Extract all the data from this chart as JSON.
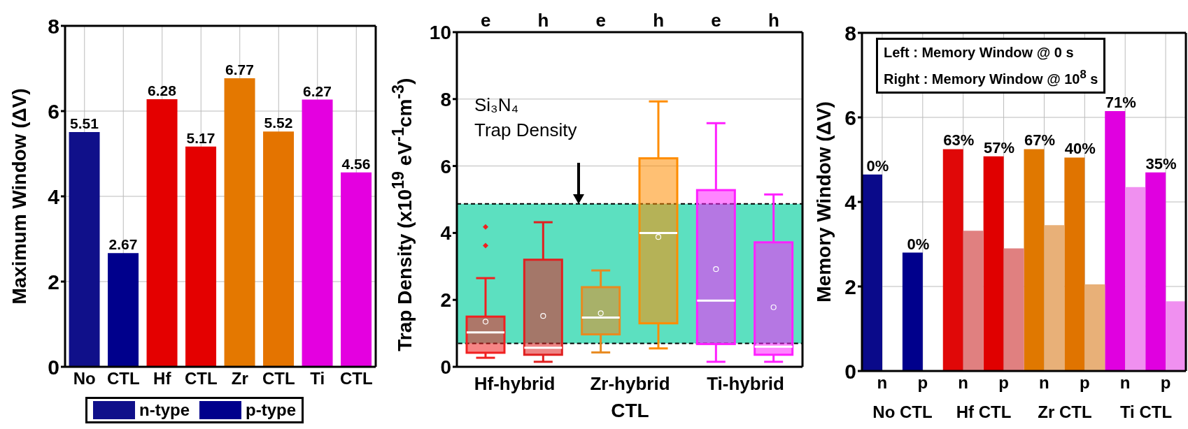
{
  "chart_data": [
    {
      "type": "bar",
      "ylabel": "Maximum Window (ΔV)",
      "categories": [
        "No",
        "CTL",
        "Hf",
        "CTL",
        "Zr",
        "CTL",
        "Ti",
        "CTL"
      ],
      "series": [
        {
          "name": "n-type",
          "color": "#10108a",
          "colors": [
            "#10108a",
            null,
            "#e40000",
            null,
            "#e47800",
            null,
            "#e400e0",
            null
          ],
          "values": [
            5.51,
            null,
            6.28,
            null,
            6.77,
            null,
            6.27,
            null
          ]
        },
        {
          "name": "p-type",
          "color": "#00008c",
          "colors": [
            null,
            "#00008c",
            null,
            "#e40000",
            null,
            "#e47400",
            null,
            "#e400e0"
          ],
          "values": [
            null,
            2.67,
            null,
            5.17,
            null,
            5.52,
            null,
            4.56
          ]
        }
      ],
      "stacked": true,
      "data_labels": true,
      "ylim": [
        0,
        8
      ],
      "yticks": [
        0,
        2,
        4,
        6,
        8
      ],
      "grid": true,
      "legend": "bottom"
    },
    {
      "type": "box",
      "ylabel": "Trap Density (x10$^{19}$ eV$^{-1}$cm$^{-3}$)",
      "xlabel": "CTL",
      "categories": [
        "e",
        "h",
        "e",
        "h",
        "e",
        "h"
      ],
      "colors": [
        "#f02020",
        "#e02020",
        "#e88a20",
        "#ff8c00",
        "#ff20ff",
        "#ff20ff"
      ],
      "boxes": [
        {
          "low": 0.27,
          "q1": 0.42,
          "median": 1.03,
          "q3": 1.5,
          "high": 2.65,
          "mean": 1.35,
          "outliers": [
            3.62,
            4.18
          ]
        },
        {
          "low": 0.15,
          "q1": 0.36,
          "median": 0.57,
          "q3": 3.2,
          "high": 4.32,
          "mean": 1.52
        },
        {
          "low": 0.43,
          "q1": 0.97,
          "median": 1.47,
          "q3": 2.38,
          "high": 2.88,
          "mean": 1.6
        },
        {
          "low": 0.55,
          "q1": 1.3,
          "median": 4.0,
          "q3": 6.23,
          "high": 7.93,
          "mean": 3.88
        },
        {
          "low": 0.15,
          "q1": 0.68,
          "median": 1.98,
          "q3": 5.28,
          "high": 7.28,
          "mean": 2.92
        },
        {
          "low": 0.15,
          "q1": 0.36,
          "median": 0.6,
          "q3": 3.72,
          "high": 5.15,
          "mean": 1.78
        }
      ],
      "bands": [
        {
          "axis": "y",
          "from": 0.7,
          "to": 4.87,
          "label": "Si₃N₄\nTrap Density",
          "color": "#5ce0c0"
        }
      ],
      "annotations": [
        "Hf-hybrid",
        "Zr-hybrid",
        "Ti-hybrid"
      ],
      "ylim": [
        0,
        10
      ],
      "yticks": [
        0,
        2,
        4,
        6,
        8,
        10
      ],
      "grid": true
    },
    {
      "type": "bar",
      "ylabel": "Memory Window (ΔV)",
      "categories": [
        "n",
        "p",
        "n",
        "p",
        "n",
        "p",
        "n",
        "p"
      ],
      "series": [
        {
          "colors": [
            "#0a0a8a",
            "#00008c",
            "#e00808",
            "#e00000",
            "#e07800",
            "#e07400",
            "#e000e0",
            "#e000e0"
          ],
          "values": [
            4.65,
            2.8,
            5.25,
            5.08,
            5.25,
            5.05,
            6.15,
            4.7
          ]
        },
        {
          "colors": [
            "#8080c0",
            "#8080c0",
            "#e08080",
            "#e08080",
            "#e8b078",
            "#e8b078",
            "#f090f0",
            "#f090f0"
          ],
          "values": [
            0,
            0,
            3.32,
            2.9,
            3.45,
            2.05,
            4.35,
            1.65
          ]
        }
      ],
      "annotations": [
        "Left : Memory Window @ 0 s",
        "Right : Memory Window @ 10$^{8}$ s",
        "0%",
        "0%",
        "63%",
        "57%",
        "67%",
        "40%",
        "71%",
        "35%",
        "No CTL",
        "Hf CTL",
        "Zr CTL",
        "Ti CTL"
      ],
      "ylim": [
        0,
        8
      ],
      "yticks": [
        0,
        2,
        4,
        6,
        8
      ],
      "grid": true
    }
  ]
}
